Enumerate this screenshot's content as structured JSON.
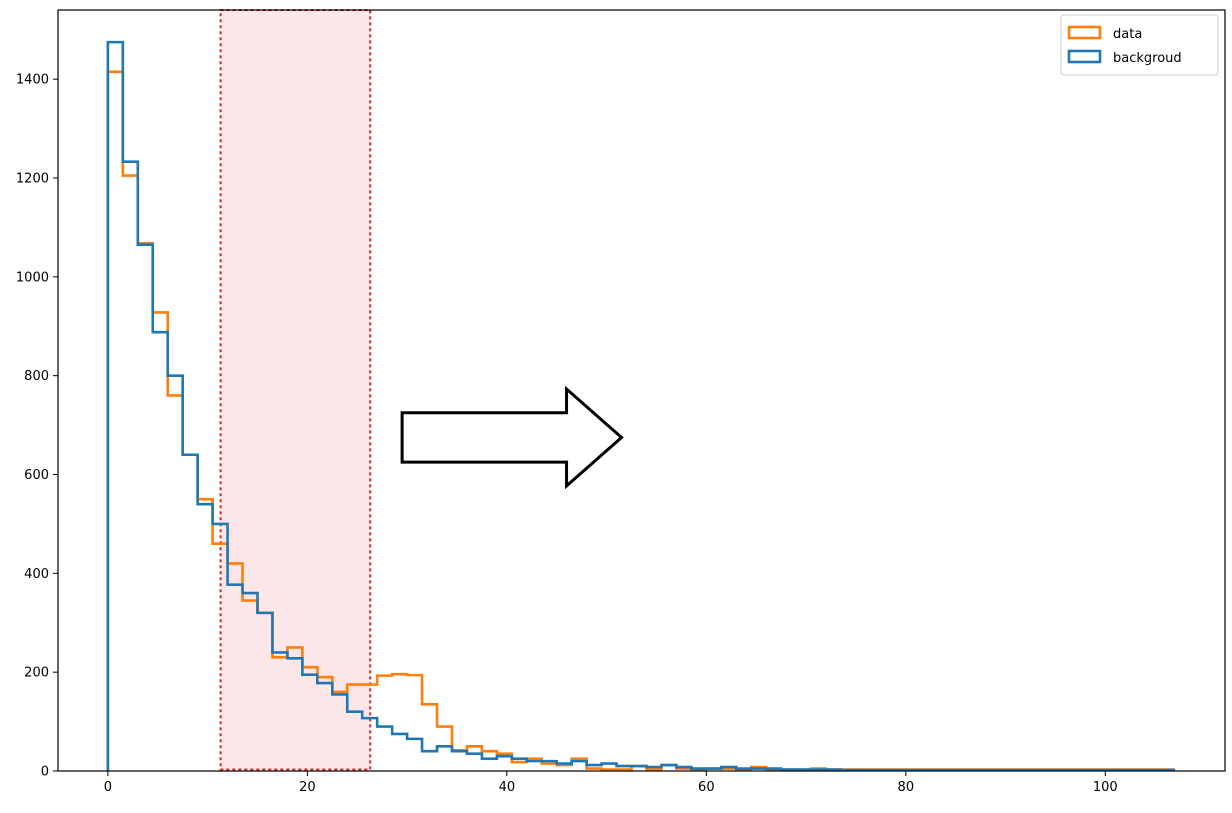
{
  "chart_data": {
    "type": "histogram",
    "title": "",
    "xlabel": "",
    "ylabel": "",
    "xlim": [
      -5,
      112
    ],
    "ylim": [
      0,
      1540
    ],
    "xticks": [
      0,
      20,
      40,
      60,
      80,
      100
    ],
    "yticks": [
      0,
      200,
      400,
      600,
      800,
      1000,
      1200,
      1400
    ],
    "legend_position": "top-right",
    "bin_edges": [
      0,
      1.5,
      3,
      4.5,
      6,
      7.5,
      9,
      10.5,
      12,
      13.5,
      15,
      16.5,
      18,
      19.5,
      21,
      22.5,
      24,
      25.5,
      27,
      28.5,
      30,
      31.5,
      33,
      34.5,
      36,
      37.5,
      39,
      40.5,
      42,
      43.5,
      45,
      46.5,
      48,
      49.5,
      51,
      52.5,
      54,
      55.5,
      57,
      58.5,
      60,
      61.5,
      63,
      64.5,
      66,
      67.5,
      69,
      70.5,
      72,
      73.5,
      107
    ],
    "series": [
      {
        "name": "data",
        "color": "#ff7f0e",
        "values": [
          1415,
          1205,
          1068,
          928,
          760,
          640,
          550,
          460,
          420,
          345,
          320,
          230,
          250,
          210,
          190,
          160,
          175,
          175,
          193,
          196,
          194,
          135,
          90,
          42,
          50,
          40,
          35,
          18,
          25,
          15,
          12,
          25,
          5,
          3,
          3,
          10,
          3,
          12,
          5,
          3,
          5,
          5,
          3,
          8,
          3,
          3,
          3,
          5,
          3,
          3
        ]
      },
      {
        "name": "backgroud",
        "color": "#1f77b4",
        "values": [
          1475,
          1233,
          1065,
          888,
          800,
          640,
          540,
          500,
          377,
          360,
          320,
          240,
          228,
          195,
          178,
          155,
          120,
          107,
          90,
          75,
          65,
          40,
          50,
          40,
          35,
          25,
          30,
          25,
          20,
          20,
          15,
          20,
          12,
          15,
          10,
          10,
          8,
          12,
          8,
          5,
          5,
          8,
          5,
          5,
          5,
          3,
          3,
          3,
          3,
          2
        ]
      }
    ],
    "highlight_region": {
      "x": [
        11.3,
        26.3
      ],
      "y": [
        3,
        1540
      ]
    },
    "arrow": {
      "tail_x": 29.5,
      "head_x": 51.5,
      "y": 675,
      "shaft_half_height": 50,
      "head_half_height": 98
    }
  }
}
